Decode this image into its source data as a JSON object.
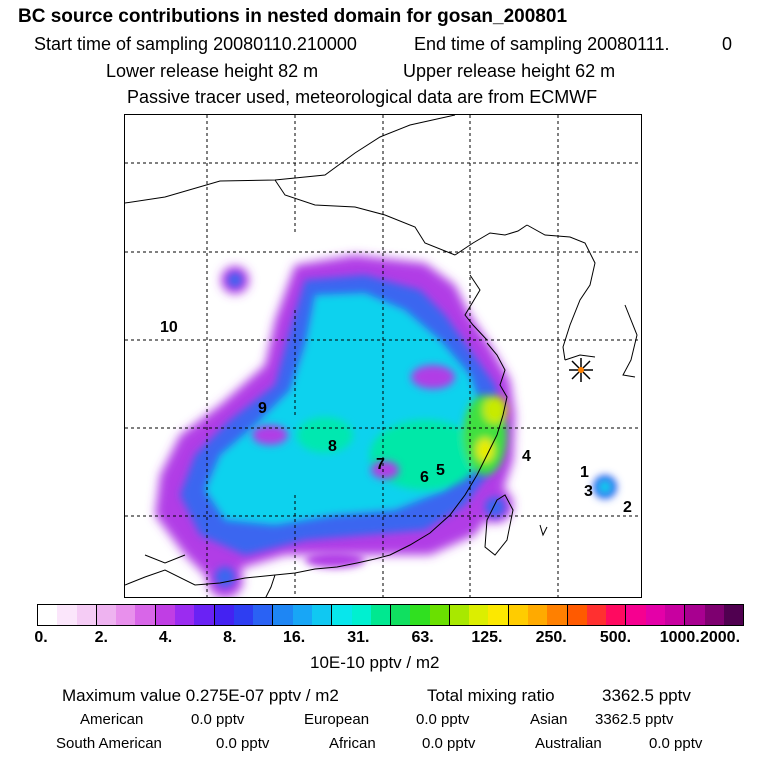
{
  "header": {
    "title": "BC  source contributions in nested domain for gosan_200801",
    "start_label": "Start time of sampling 20080110.210000",
    "end_label": "End time of sampling 20080111.",
    "end_value": "0",
    "lower_release": "Lower release height   82 m",
    "upper_release": "Upper release height   62 m",
    "note": "Passive tracer used, meteorological data are from ECMWF"
  },
  "map": {
    "region_labels": [
      "10",
      "9",
      "8",
      "7",
      "6",
      "5",
      "4",
      "1",
      "3",
      "2"
    ],
    "marker": "receptor-star-icon"
  },
  "colorbar": {
    "colors": [
      "#ffffff",
      "#fbe6fb",
      "#f5ccf5",
      "#eeb3f0",
      "#e890ec",
      "#d866e8",
      "#c03ee4",
      "#9b2cf0",
      "#6a22f4",
      "#4422f2",
      "#2e3ef2",
      "#2a62f4",
      "#1e86f4",
      "#18a6f6",
      "#10c8f2",
      "#08e6ec",
      "#00f0d0",
      "#00e890",
      "#10e060",
      "#30e020",
      "#6ae000",
      "#a8e800",
      "#dcee00",
      "#fce800",
      "#ffcc00",
      "#ffaa00",
      "#ff8000",
      "#ff5a00",
      "#ff3030",
      "#ff0a60",
      "#f60090",
      "#e400a8",
      "#c800a0",
      "#a80090",
      "#7e0070",
      "#500050"
    ],
    "ticks": [
      "0.",
      "2.",
      "4.",
      "8.",
      "16.",
      "31.",
      "63.",
      "125.",
      "250.",
      "500.",
      "1000.",
      "2000."
    ],
    "unit_label": "10E-10 pptv / m2"
  },
  "summary": {
    "maximum_label": "Maximum value  0.275E-07 pptv / m2",
    "total_label": "Total mixing ratio",
    "total_value": "3362.5 pptv",
    "american_label": "American",
    "american_value": "0.0 pptv",
    "european_label": "European",
    "european_value": "0.0 pptv",
    "asian_label": "Asian",
    "asian_value": "3362.5 pptv",
    "south_american_label": "South American",
    "south_american_value": "0.0 pptv",
    "african_label": "African",
    "african_value": "0.0 pptv",
    "australian_label": "Australian",
    "australian_value": "0.0 pptv"
  }
}
